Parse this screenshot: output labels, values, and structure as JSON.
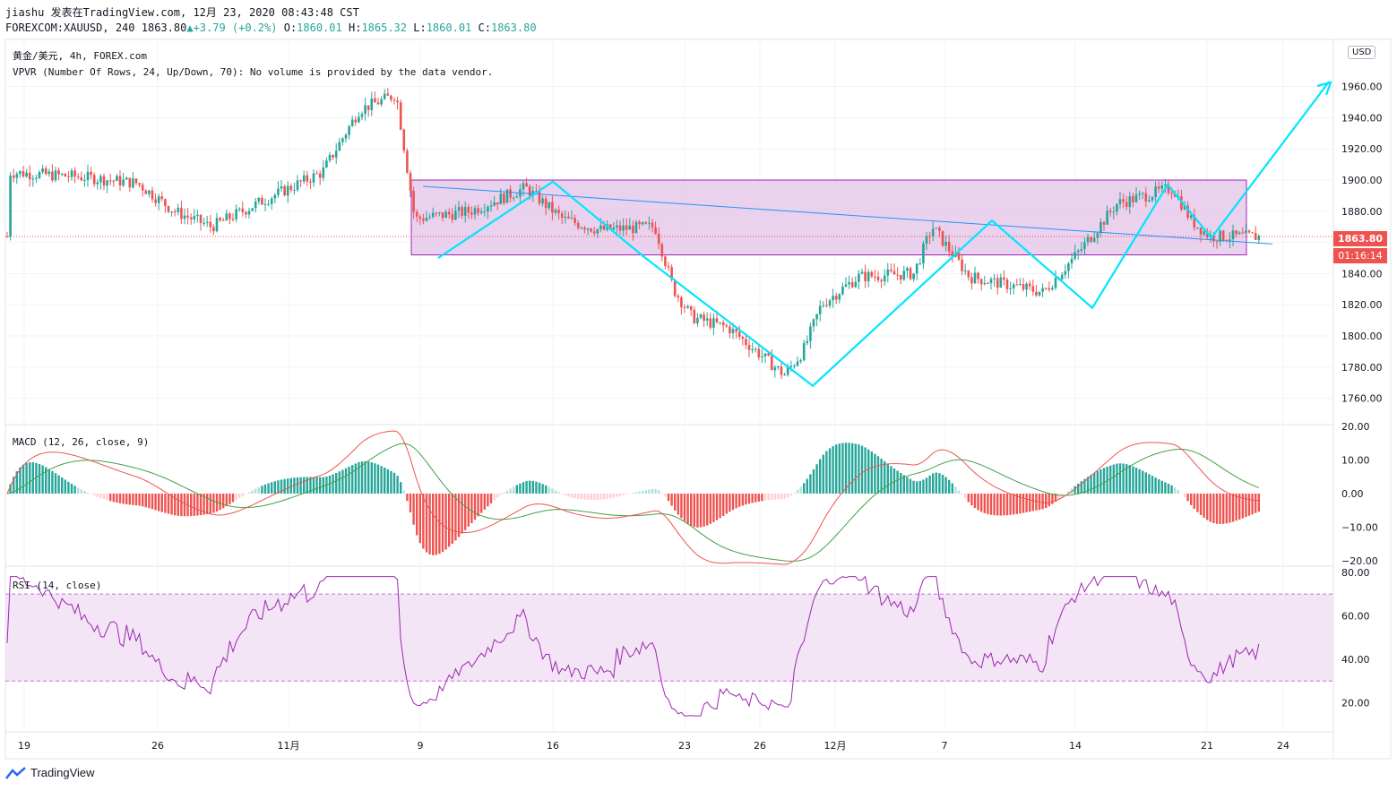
{
  "header": {
    "line1_author": "jiashu",
    "line1_published": "发表在TradingView.com,",
    "line1_date": "12月 23, 2020 08:43:48 CST",
    "symbol": "FOREXCOM:XAUUSD,",
    "interval": "240",
    "last": "1863.80",
    "change": "+3.79 (+0.2%)",
    "o_label": "O:",
    "o_value": "1860.01",
    "h_label": "H:",
    "h_value": "1865.32",
    "l_label": "L:",
    "l_value": "1860.01",
    "c_label": "C:",
    "c_value": "1863.80"
  },
  "legend": {
    "title": "黄金/美元, 4h, FOREX.com",
    "vpvr": "VPVR (Number Of Rows, 24, Up/Down, 70): No volume is provided by the data vendor.",
    "macd": "MACD (12, 26, close, 9)",
    "rsi": "RSI (14, close)"
  },
  "price_axis": {
    "currency": "USD",
    "ticks": [
      "1960.00",
      "1940.00",
      "1920.00",
      "1900.00",
      "1880.00",
      "1860.00",
      "1840.00",
      "1820.00",
      "1800.00",
      "1780.00",
      "1760.00"
    ],
    "last_price": "1863.80",
    "countdown": "01:16:14"
  },
  "macd_axis": {
    "ticks": [
      "20.00",
      "10.00",
      "0.00",
      "−10.00",
      "−20.00"
    ]
  },
  "rsi_axis": {
    "ticks": [
      "80.00",
      "60.00",
      "40.00",
      "20.00"
    ]
  },
  "time_axis": {
    "ticks": [
      "19",
      "26",
      "11月",
      "9",
      "16",
      "23",
      "26",
      "12月",
      "7",
      "14",
      "21",
      "24"
    ]
  },
  "brand": "TradingView",
  "colors": {
    "up": "#26a69a",
    "down": "#ef5350",
    "zigzag": "#00e5ff",
    "trendline": "#2196f3",
    "box_fill": "#e1bee7",
    "box_border": "#9c27b0",
    "rsi_line": "#9c27b0",
    "rsi_band": "#f3e5f5",
    "macd_line": "#ef5350",
    "signal_line": "#43a047"
  },
  "chart_data": {
    "type": "candlestick",
    "symbol": "XAUUSD",
    "timeframe": "4h",
    "ylim": [
      1750,
      1970
    ],
    "rectangle": {
      "y_top": 1900,
      "y_bottom": 1852,
      "from": "11月 9",
      "to": "12月 21"
    },
    "trendline": [
      {
        "date": "11月 9",
        "y": 1896
      },
      {
        "date": "12月 22",
        "y": 1859
      }
    ],
    "zigzag": [
      {
        "date": "11月 9",
        "y": 1850
      },
      {
        "date": "11月 16",
        "y": 1899
      },
      {
        "date": "11月 20",
        "y": 1851
      },
      {
        "date": "11月 30",
        "y": 1768
      },
      {
        "date": "12月 8",
        "y": 1874
      },
      {
        "date": "12月 14",
        "y": 1818
      },
      {
        "date": "12月 18",
        "y": 1897
      },
      {
        "date": "12月 21",
        "y": 1863
      },
      {
        "date": "12月 24",
        "y": 1963
      }
    ],
    "close_path": [
      [
        "10月 19",
        1905
      ],
      [
        "10月 23",
        1902
      ],
      [
        "10月 26",
        1898
      ],
      [
        "10月 28",
        1880
      ],
      [
        "10月 30",
        1870
      ],
      [
        "11月 2",
        1888
      ],
      [
        "11月 5",
        1905
      ],
      [
        "11月 7",
        1945
      ],
      [
        "11月 9",
        1955
      ],
      [
        "11月 10",
        1875
      ],
      [
        "11月 13",
        1880
      ],
      [
        "11月 16",
        1895
      ],
      [
        "11月 18",
        1875
      ],
      [
        "11月 20",
        1868
      ],
      [
        "11月 23",
        1870
      ],
      [
        "11月 24",
        1830
      ],
      [
        "11月 25",
        1812
      ],
      [
        "11月 27",
        1805
      ],
      [
        "11月 30",
        1775
      ],
      [
        "12月 1",
        1790
      ],
      [
        "12月 2",
        1820
      ],
      [
        "12月 4",
        1838
      ],
      [
        "12月 7",
        1840
      ],
      [
        "12月 8",
        1870
      ],
      [
        "12月 10",
        1838
      ],
      [
        "12月 14",
        1828
      ],
      [
        "12月 16",
        1855
      ],
      [
        "12月 18",
        1885
      ],
      [
        "12月 21",
        1895
      ],
      [
        "12月 22",
        1874
      ],
      [
        "12月 23",
        1863.8
      ]
    ],
    "last": {
      "o": 1860.01,
      "h": 1865.32,
      "l": 1860.01,
      "c": 1863.8
    }
  }
}
